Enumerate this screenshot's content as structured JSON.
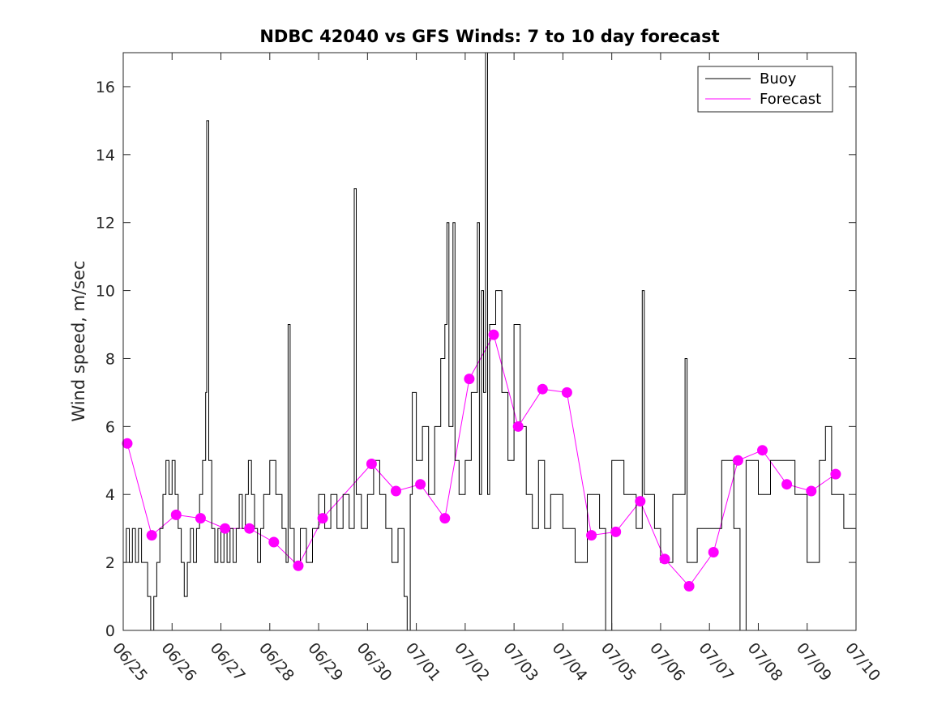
{
  "chart_data": {
    "type": "line",
    "title": "NDBC 42040 vs GFS Winds: 7 to 10 day forecast",
    "xlabel": "",
    "ylabel": "Wind speed, m/sec",
    "x_axis": {
      "type": "date",
      "start": "06/25",
      "end": "07/10",
      "tick_labels": [
        "06/25",
        "06/26",
        "06/27",
        "06/28",
        "06/29",
        "06/30",
        "07/01",
        "07/02",
        "07/03",
        "07/04",
        "07/05",
        "07/06",
        "07/07",
        "07/08",
        "07/09",
        "07/10"
      ]
    },
    "ylim": [
      0,
      17
    ],
    "y_ticks": [
      0,
      2,
      4,
      6,
      8,
      10,
      12,
      14,
      16
    ],
    "legend": {
      "placement": "top-right",
      "entries": [
        "Buoy",
        "Forecast"
      ]
    },
    "colors": {
      "buoy": "#000000",
      "forecast": "#ff00ff"
    },
    "series": [
      {
        "name": "Buoy",
        "style": "step-line",
        "approx_points": [
          [
            "06/25 00:00",
            2
          ],
          [
            "06/25 01:30",
            3
          ],
          [
            "06/25 03:00",
            2
          ],
          [
            "06/25 04:30",
            3
          ],
          [
            "06/25 06:00",
            2
          ],
          [
            "06/25 07:30",
            3
          ],
          [
            "06/25 09:00",
            2
          ],
          [
            "06/25 10:30",
            2
          ],
          [
            "06/25 12:00",
            1
          ],
          [
            "06/25 13:30",
            0
          ],
          [
            "06/25 15:00",
            1
          ],
          [
            "06/25 16:30",
            2
          ],
          [
            "06/25 18:00",
            3
          ],
          [
            "06/25 19:30",
            4
          ],
          [
            "06/25 21:00",
            5
          ],
          [
            "06/25 22:30",
            4
          ],
          [
            "06/26 00:00",
            5
          ],
          [
            "06/26 01:30",
            4
          ],
          [
            "06/26 03:00",
            3
          ],
          [
            "06/26 04:30",
            2
          ],
          [
            "06/26 06:00",
            1
          ],
          [
            "06/26 07:30",
            2
          ],
          [
            "06/26 09:00",
            3
          ],
          [
            "06/26 10:30",
            2
          ],
          [
            "06/26 12:00",
            3
          ],
          [
            "06/26 13:30",
            4
          ],
          [
            "06/26 15:00",
            5
          ],
          [
            "06/26 16:30",
            7
          ],
          [
            "06/26 17:00",
            15
          ],
          [
            "06/26 18:00",
            5
          ],
          [
            "06/26 19:30",
            3
          ],
          [
            "06/26 21:00",
            2
          ],
          [
            "06/26 22:30",
            3
          ],
          [
            "06/27 00:00",
            2
          ],
          [
            "06/27 01:30",
            3
          ],
          [
            "06/27 03:00",
            2
          ],
          [
            "06/27 04:30",
            3
          ],
          [
            "06/27 06:00",
            2
          ],
          [
            "06/27 07:30",
            3
          ],
          [
            "06/27 09:00",
            4
          ],
          [
            "06/27 10:30",
            3
          ],
          [
            "06/27 12:00",
            4
          ],
          [
            "06/27 13:30",
            5
          ],
          [
            "06/27 15:00",
            4
          ],
          [
            "06/27 16:30",
            3
          ],
          [
            "06/27 18:00",
            2
          ],
          [
            "06/27 19:30",
            3
          ],
          [
            "06/27 21:00",
            4
          ],
          [
            "06/28 00:00",
            5
          ],
          [
            "06/28 03:00",
            4
          ],
          [
            "06/28 06:00",
            3
          ],
          [
            "06/28 08:00",
            2
          ],
          [
            "06/28 09:00",
            9
          ],
          [
            "06/28 10:00",
            3
          ],
          [
            "06/28 12:00",
            2
          ],
          [
            "06/28 15:00",
            3
          ],
          [
            "06/28 18:00",
            2
          ],
          [
            "06/28 21:00",
            3
          ],
          [
            "06/29 00:00",
            4
          ],
          [
            "06/29 03:00",
            3
          ],
          [
            "06/29 06:00",
            4
          ],
          [
            "06/29 09:00",
            3
          ],
          [
            "06/29 12:00",
            4
          ],
          [
            "06/29 15:00",
            3
          ],
          [
            "06/29 17:30",
            13
          ],
          [
            "06/29 18:30",
            4
          ],
          [
            "06/29 21:00",
            3
          ],
          [
            "06/30 00:00",
            4
          ],
          [
            "06/30 03:00",
            5
          ],
          [
            "06/30 06:00",
            4
          ],
          [
            "06/30 09:00",
            3
          ],
          [
            "06/30 12:00",
            2
          ],
          [
            "06/30 15:00",
            3
          ],
          [
            "06/30 18:00",
            1
          ],
          [
            "06/30 19:30",
            0
          ],
          [
            "06/30 21:00",
            4
          ],
          [
            "06/30 22:00",
            7
          ],
          [
            "07/01 00:00",
            5
          ],
          [
            "07/01 03:00",
            6
          ],
          [
            "07/01 06:00",
            4
          ],
          [
            "07/01 09:00",
            6
          ],
          [
            "07/01 12:00",
            8
          ],
          [
            "07/01 14:00",
            9
          ],
          [
            "07/01 15:00",
            12
          ],
          [
            "07/01 16:00",
            6
          ],
          [
            "07/01 18:00",
            12
          ],
          [
            "07/01 19:00",
            5
          ],
          [
            "07/01 21:00",
            4
          ],
          [
            "07/02 00:00",
            5
          ],
          [
            "07/02 03:00",
            7
          ],
          [
            "07/02 06:00",
            12
          ],
          [
            "07/02 07:00",
            4
          ],
          [
            "07/02 08:00",
            10
          ],
          [
            "07/02 09:00",
            7
          ],
          [
            "07/02 10:00",
            17
          ],
          [
            "07/02 11:00",
            4
          ],
          [
            "07/02 12:00",
            9
          ],
          [
            "07/02 15:00",
            10
          ],
          [
            "07/02 18:00",
            7
          ],
          [
            "07/02 21:00",
            5
          ],
          [
            "07/03 00:00",
            9
          ],
          [
            "07/03 03:00",
            6
          ],
          [
            "07/03 06:00",
            4
          ],
          [
            "07/03 09:00",
            3
          ],
          [
            "07/03 12:00",
            5
          ],
          [
            "07/03 15:00",
            3
          ],
          [
            "07/03 18:00",
            4
          ],
          [
            "07/04 00:00",
            3
          ],
          [
            "07/04 06:00",
            2
          ],
          [
            "07/04 12:00",
            4
          ],
          [
            "07/04 18:00",
            3
          ],
          [
            "07/04 21:00",
            0
          ],
          [
            "07/05 00:00",
            5
          ],
          [
            "07/05 06:00",
            4
          ],
          [
            "07/05 12:00",
            3
          ],
          [
            "07/05 15:00",
            10
          ],
          [
            "07/05 16:00",
            4
          ],
          [
            "07/05 21:00",
            3
          ],
          [
            "07/06 00:00",
            2
          ],
          [
            "07/06 06:00",
            4
          ],
          [
            "07/06 12:00",
            8
          ],
          [
            "07/06 13:00",
            2
          ],
          [
            "07/06 18:00",
            3
          ],
          [
            "07/07 00:00",
            3
          ],
          [
            "07/07 06:00",
            5
          ],
          [
            "07/07 12:00",
            3
          ],
          [
            "07/07 15:00",
            0
          ],
          [
            "07/07 18:00",
            5
          ],
          [
            "07/08 00:00",
            4
          ],
          [
            "07/08 06:00",
            5
          ],
          [
            "07/08 12:00",
            5
          ],
          [
            "07/08 18:00",
            4
          ],
          [
            "07/09 00:00",
            2
          ],
          [
            "07/09 06:00",
            5
          ],
          [
            "07/09 09:00",
            6
          ],
          [
            "07/09 12:00",
            4
          ],
          [
            "07/09 18:00",
            3
          ],
          [
            "07/10 00:00",
            2
          ]
        ]
      },
      {
        "name": "Forecast",
        "style": "thin-lines",
        "markers": [
          [
            "06/25 02:00",
            5.5
          ],
          [
            "06/25 14:00",
            2.8
          ],
          [
            "06/26 02:00",
            3.4
          ],
          [
            "06/26 14:00",
            3.3
          ],
          [
            "06/27 02:00",
            3.0
          ],
          [
            "06/27 14:00",
            3.0
          ],
          [
            "06/28 02:00",
            2.6
          ],
          [
            "06/28 14:00",
            1.9
          ],
          [
            "06/29 02:00",
            3.3
          ],
          [
            "06/30 02:00",
            4.9
          ],
          [
            "06/30 14:00",
            4.1
          ],
          [
            "07/01 02:00",
            4.3
          ],
          [
            "07/01 14:00",
            3.3
          ],
          [
            "07/02 02:00",
            7.4
          ],
          [
            "07/02 14:00",
            8.7
          ],
          [
            "07/03 02:00",
            6.0
          ],
          [
            "07/03 14:00",
            7.1
          ],
          [
            "07/04 02:00",
            7.0
          ],
          [
            "07/04 14:00",
            2.8
          ],
          [
            "07/05 02:00",
            2.9
          ],
          [
            "07/05 14:00",
            3.8
          ],
          [
            "07/06 02:00",
            2.1
          ],
          [
            "07/06 14:00",
            1.3
          ],
          [
            "07/07 02:00",
            2.3
          ],
          [
            "07/07 14:00",
            5.0
          ],
          [
            "07/08 02:00",
            5.3
          ],
          [
            "07/08 14:00",
            4.3
          ],
          [
            "07/09 02:00",
            4.1
          ],
          [
            "07/09 14:00",
            4.6
          ]
        ]
      }
    ]
  }
}
